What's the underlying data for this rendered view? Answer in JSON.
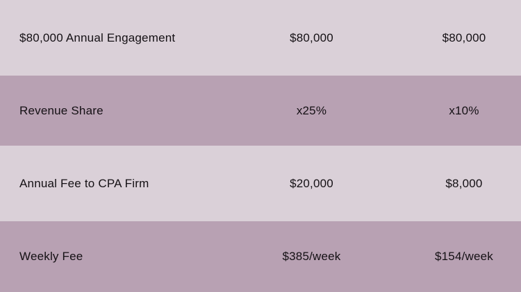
{
  "colors": {
    "row_light": "#dad0d8",
    "row_dark": "#b8a1b3",
    "text": "#141014"
  },
  "rows": [
    {
      "label": "$80,000 Annual Engagement",
      "col1": "$80,000",
      "col2": "$80,000"
    },
    {
      "label": "Revenue Share",
      "col1": "x25%",
      "col2": "x10%"
    },
    {
      "label": "Annual Fee to CPA Firm",
      "col1": "$20,000",
      "col2": "$8,000"
    },
    {
      "label": "Weekly Fee",
      "col1": "$385/week",
      "col2": "$154/week"
    }
  ]
}
